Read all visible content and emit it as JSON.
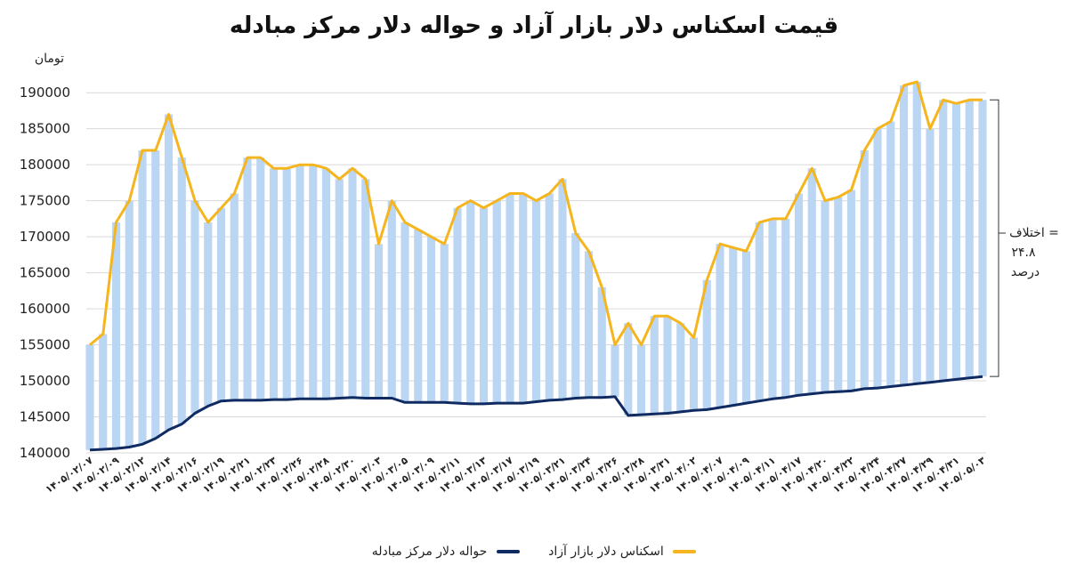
{
  "chart_data": {
    "type": "area",
    "title": "قیمت اسکناس دلار بازار آزاد و حواله دلار مرکز مبادله",
    "ylabel": "تومان",
    "ylim": [
      140000,
      192000
    ],
    "yticks": [
      "140000",
      "145000",
      "150000",
      "155000",
      "160000",
      "165000",
      "170000",
      "175000",
      "180000",
      "185000",
      "190000"
    ],
    "xtick_labels": [
      "۱۴۰۵/۰۲/۰۷",
      "۱۴۰۵/۰۲/۰۹",
      "۱۴۰۵/۰۲/۱۲",
      "۱۴۰۵/۰۲/۱۴",
      "۱۴۰۵/۰۲/۱۶",
      "۱۴۰۵/۰۲/۱۹",
      "۱۴۰۵/۰۲/۲۱",
      "۱۴۰۵/۰۲/۲۳",
      "۱۴۰۵/۰۲/۲۶",
      "۱۴۰۵/۰۲/۲۸",
      "۱۴۰۵/۰۲/۳۰",
      "۱۴۰۵/۰۳/۰۳",
      "۱۴۰۵/۰۳/۰۵",
      "۱۴۰۵/۰۳/۰۹",
      "۱۴۰۵/۰۳/۱۱",
      "۱۴۰۵/۰۳/۱۳",
      "۱۴۰۵/۰۳/۱۷",
      "۱۴۰۵/۰۳/۱۹",
      "۱۴۰۵/۰۳/۲۱",
      "۱۴۰۵/۰۳/۲۴",
      "۱۴۰۵/۰۳/۲۶",
      "۱۴۰۵/۰۳/۲۸",
      "۱۴۰۵/۰۳/۳۱",
      "۱۴۰۵/۰۴/۰۲",
      "۱۴۰۵/۰۴/۰۷",
      "۱۴۰۵/۰۴/۰۹",
      "۱۴۰۵/۰۴/۱۱",
      "۱۴۰۵/۰۴/۱۷",
      "۱۴۰۵/۰۴/۲۰",
      "۱۴۰۵/۰۴/۲۲",
      "۱۴۰۵/۰۴/۲۴",
      "۱۴۰۵/۰۴/۲۷",
      "۱۴۰۵/۰۴/۲۹",
      "۱۴۰۵/۰۴/۳۱",
      "۱۴۰۵/۰۵/۰۳"
    ],
    "series": [
      {
        "name": "اسکناس دلار بازار آزاد",
        "color": "#F5B51E",
        "values": [
          155000,
          156500,
          172000,
          175000,
          182000,
          182000,
          187000,
          181000,
          175000,
          172000,
          174000,
          176000,
          181000,
          181000,
          179500,
          179500,
          180000,
          180000,
          179500,
          178000,
          179500,
          178000,
          169000,
          175000,
          172000,
          171000,
          170000,
          169000,
          174000,
          175000,
          174000,
          175000,
          176000,
          176000,
          175000,
          176000,
          178000,
          170500,
          168000,
          163000,
          155000,
          158000,
          155000,
          159000,
          159000,
          158000,
          156000,
          164000,
          169000,
          168500,
          168000,
          172000,
          172500,
          172500,
          176000,
          179500,
          175000,
          175500,
          176500,
          182000,
          185000,
          186000,
          191000,
          191500,
          185000,
          189000,
          188500,
          189000,
          189000
        ]
      },
      {
        "name": "حواله دلار مرکز مبادله",
        "color": "#0F2B62",
        "values": [
          140400,
          140500,
          140600,
          140800,
          141200,
          142000,
          143200,
          144000,
          145500,
          146500,
          147200,
          147300,
          147300,
          147300,
          147400,
          147400,
          147500,
          147500,
          147500,
          147600,
          147700,
          147600,
          147600,
          147600,
          147000,
          147000,
          147000,
          147000,
          146900,
          146800,
          146800,
          146900,
          146900,
          146900,
          147100,
          147300,
          147400,
          147600,
          147700,
          147700,
          147800,
          145200,
          145300,
          145400,
          145500,
          145700,
          145900,
          146000,
          146300,
          146600,
          146900,
          147200,
          147500,
          147700,
          148000,
          148200,
          148400,
          148500,
          148600,
          148900,
          149000,
          149200,
          149400,
          149600,
          149800,
          150000,
          150200,
          150400,
          150600
        ]
      }
    ],
    "annotation": {
      "line1": "اختلاف =",
      "line2": "۲۴.۸",
      "line3": "درصد"
    },
    "grid": true,
    "legend": "bottom",
    "fill_color": "#BBD6F3"
  }
}
